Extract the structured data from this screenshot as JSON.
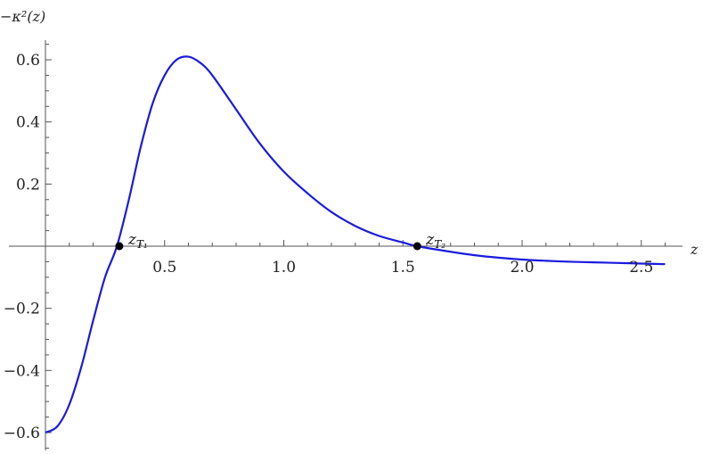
{
  "chart_data": {
    "type": "line",
    "title": "",
    "xlabel": "z",
    "ylabel": "−κ²(z)",
    "xlim": [
      0,
      2.68
    ],
    "ylim": [
      -0.66,
      0.66
    ],
    "x_ticks": [
      {
        "value": 0.5,
        "label": "0.5"
      },
      {
        "value": 1.0,
        "label": "1.0"
      },
      {
        "value": 1.5,
        "label": "1.5"
      },
      {
        "value": 2.0,
        "label": "2.0"
      },
      {
        "value": 2.5,
        "label": "2.5"
      }
    ],
    "y_ticks": [
      {
        "value": 0.6,
        "label": "0.6"
      },
      {
        "value": 0.4,
        "label": "0.4"
      },
      {
        "value": 0.2,
        "label": "0.2"
      },
      {
        "value": -0.2,
        "label": "−0.2"
      },
      {
        "value": -0.4,
        "label": "−0.4"
      },
      {
        "value": -0.6,
        "label": "−0.6"
      }
    ],
    "grid": false,
    "series": [
      {
        "color": "#1a1adf",
        "x": [
          0.0,
          0.05,
          0.1,
          0.15,
          0.2,
          0.25,
          0.3,
          0.35,
          0.4,
          0.45,
          0.5,
          0.55,
          0.6,
          0.65,
          0.7,
          0.8,
          0.9,
          1.0,
          1.1,
          1.2,
          1.3,
          1.4,
          1.5,
          1.56,
          1.7,
          1.8,
          1.9,
          2.0,
          2.1,
          2.2,
          2.3,
          2.4,
          2.5,
          2.6
        ],
        "y": [
          -0.6,
          -0.58,
          -0.51,
          -0.39,
          -0.24,
          -0.1,
          0.0,
          0.15,
          0.32,
          0.46,
          0.55,
          0.6,
          0.61,
          0.59,
          0.55,
          0.44,
          0.33,
          0.24,
          0.17,
          0.11,
          0.065,
          0.033,
          0.012,
          0.0,
          -0.018,
          -0.029,
          -0.037,
          -0.043,
          -0.047,
          -0.05,
          -0.052,
          -0.054,
          -0.056,
          -0.058
        ]
      }
    ],
    "points": [
      {
        "x": 0.31,
        "y": 0.0,
        "label": "z",
        "subscript": "T₁"
      },
      {
        "x": 1.56,
        "y": 0.0,
        "label": "z",
        "subscript": "T₂"
      }
    ]
  }
}
